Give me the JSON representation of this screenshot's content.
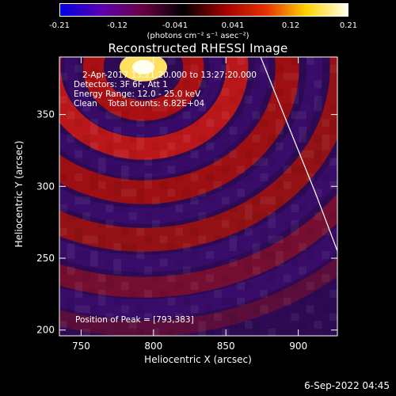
{
  "colorbar": {
    "ticks": [
      "-0.21",
      "-0.12",
      "-0.041",
      "0.041",
      "0.12",
      "0.21"
    ],
    "unit": "(photons cm⁻² s⁻¹ asec⁻²)",
    "range": [
      -0.21,
      0.21
    ],
    "colors": [
      "#0000e0",
      "#5a00b0",
      "#6a0044",
      "#000000",
      "#a00000",
      "#e53000",
      "#ffd400",
      "#fffff0"
    ]
  },
  "chart_data": {
    "type": "heatmap",
    "title": "Reconstructed RHESSI Image",
    "xlabel": "Heliocentric X (arcsec)",
    "ylabel": "Heliocentric Y (arcsec)",
    "xlim": [
      735,
      927
    ],
    "ylim": [
      196,
      390
    ],
    "xticks": [
      "750",
      "800",
      "850",
      "900"
    ],
    "yticks": [
      "200",
      "250",
      "300",
      "350"
    ],
    "annotations": [
      "2-Apr-2017 13:21:20.000 to 13:27:20.000",
      "Detectors: 3F 6F, Att 1",
      "Energy Range: 12.0 - 25.0 keV",
      "Clean    Total counts: 6.82E+04"
    ],
    "peak_label": "Position of Peak = [793,383]",
    "peak": [
      793,
      383
    ],
    "limb": [
      [
        874,
        390
      ],
      [
        894,
        340
      ],
      [
        912,
        295
      ],
      [
        927,
        255
      ]
    ]
  },
  "footer": {
    "timestamp": "6-Sep-2022 04:45"
  }
}
